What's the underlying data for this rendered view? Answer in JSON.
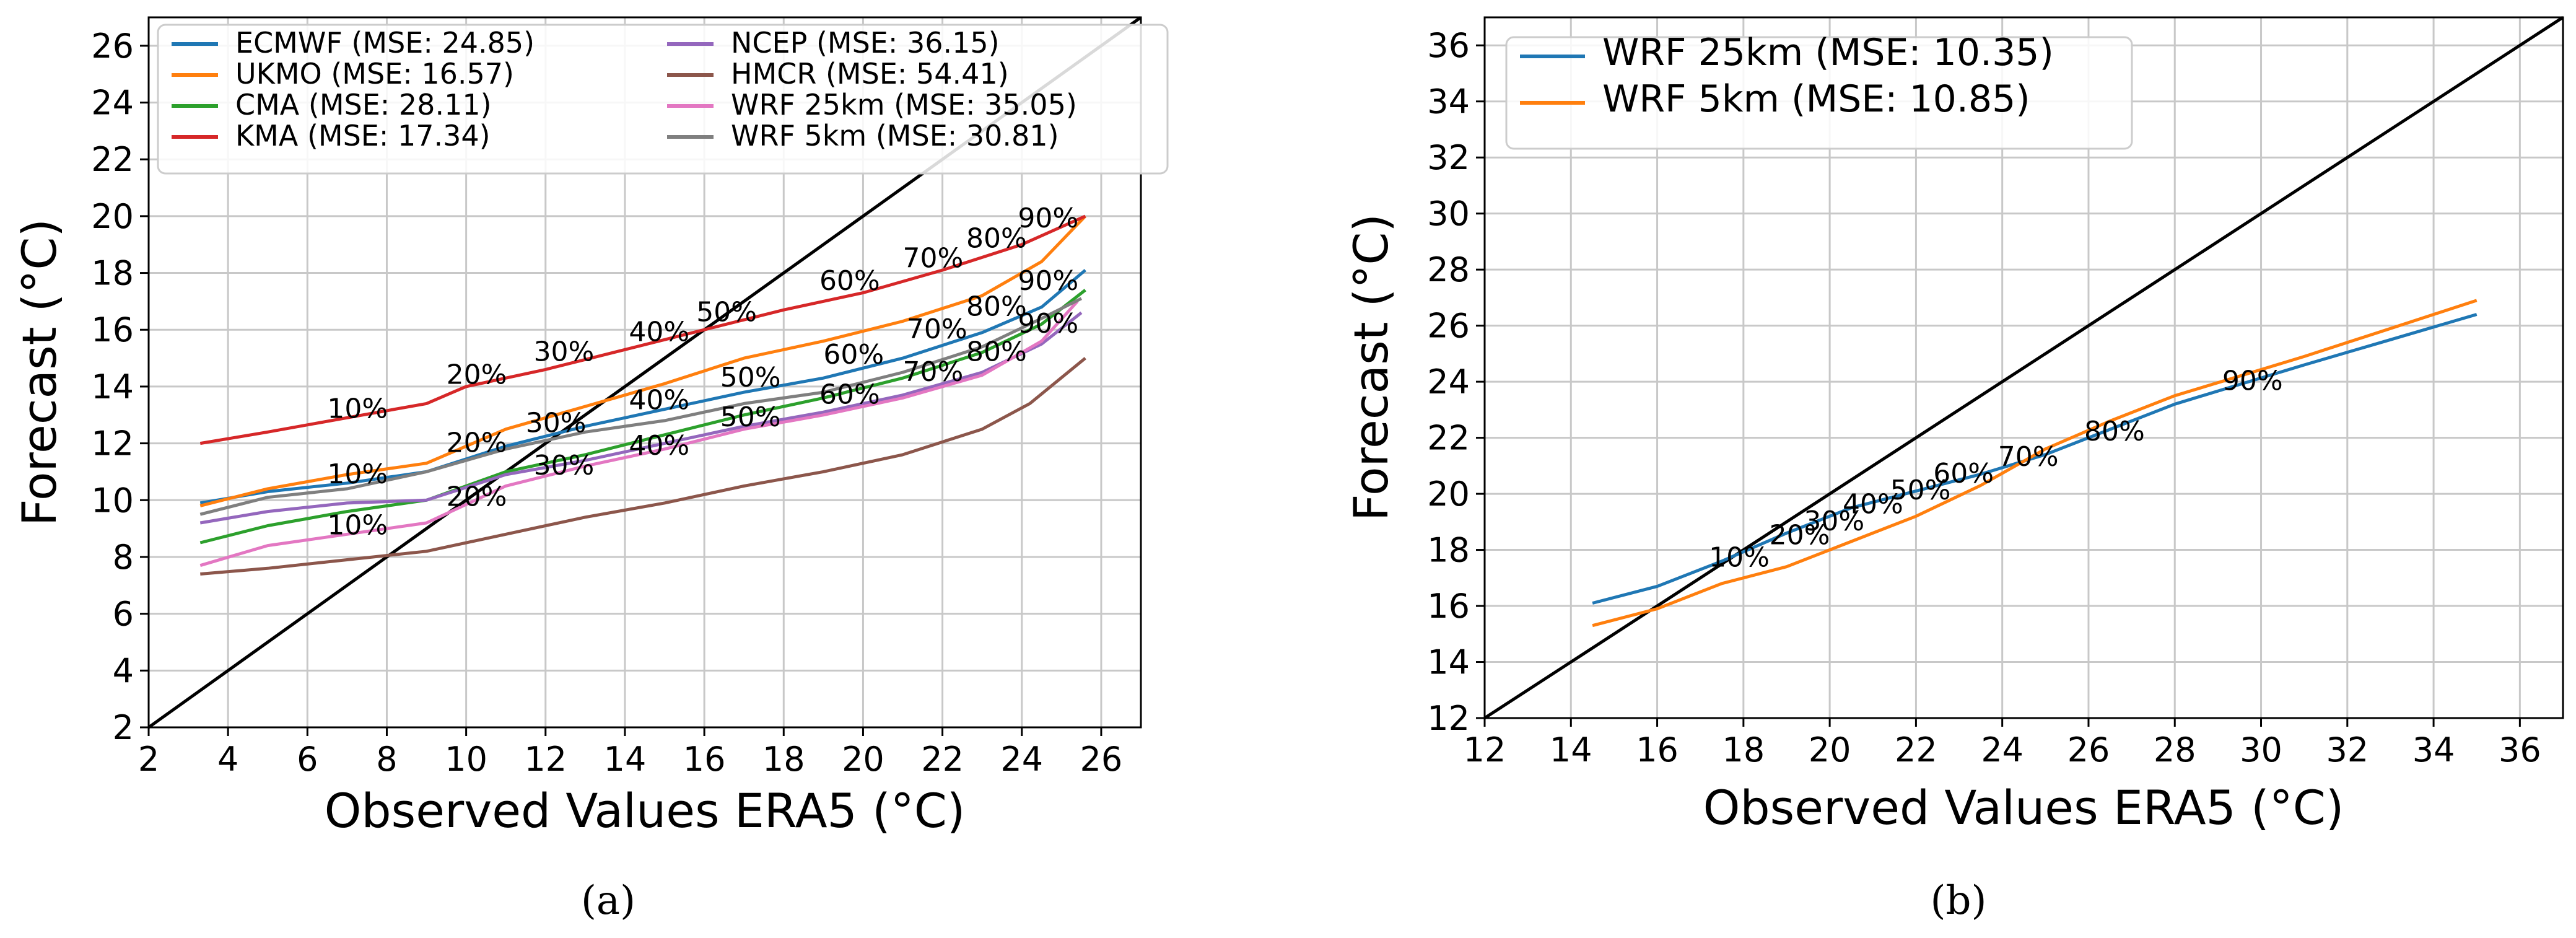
{
  "chart_data": [
    {
      "type": "line",
      "caption": "(a)",
      "xlabel": "Observed Values ERA5  (°C)",
      "ylabel": "Forecast  (°C)",
      "xlim": [
        2,
        27
      ],
      "ylim": [
        2,
        27
      ],
      "xticks": [
        2,
        4,
        6,
        8,
        10,
        12,
        14,
        16,
        18,
        20,
        22,
        24,
        26
      ],
      "yticks": [
        2,
        4,
        6,
        8,
        10,
        12,
        14,
        16,
        18,
        20,
        22,
        24,
        26
      ],
      "grid": true,
      "legend_position": "top-left",
      "legend_columns": 2,
      "reference_line": [
        [
          2,
          2
        ],
        [
          27,
          27
        ]
      ],
      "series": [
        {
          "name": "ECMWF (MSE: 24.85)",
          "color": "#1f77b4",
          "points": [
            [
              3.3,
              9.9
            ],
            [
              5.0,
              10.3
            ],
            [
              7.0,
              10.6
            ],
            [
              9.0,
              11.0
            ],
            [
              11.0,
              11.9
            ],
            [
              13.0,
              12.6
            ],
            [
              15.0,
              13.2
            ],
            [
              17.0,
              13.8
            ],
            [
              19.0,
              14.3
            ],
            [
              21.0,
              15.0
            ],
            [
              23.0,
              15.9
            ],
            [
              24.5,
              16.8
            ],
            [
              25.6,
              18.1
            ]
          ]
        },
        {
          "name": "UKMO (MSE: 16.57)",
          "color": "#ff7f0e",
          "points": [
            [
              3.3,
              9.8
            ],
            [
              5.0,
              10.4
            ],
            [
              7.0,
              10.9
            ],
            [
              9.0,
              11.3
            ],
            [
              11.0,
              12.5
            ],
            [
              13.0,
              13.3
            ],
            [
              15.0,
              14.1
            ],
            [
              17.0,
              15.0
            ],
            [
              19.0,
              15.6
            ],
            [
              21.0,
              16.3
            ],
            [
              23.0,
              17.2
            ],
            [
              24.5,
              18.4
            ],
            [
              25.6,
              20.0
            ]
          ]
        },
        {
          "name": "CMA (MSE: 28.11)",
          "color": "#2ca02c",
          "points": [
            [
              3.3,
              8.5
            ],
            [
              5.0,
              9.1
            ],
            [
              7.0,
              9.6
            ],
            [
              9.0,
              10.0
            ],
            [
              11.0,
              11.0
            ],
            [
              13.0,
              11.6
            ],
            [
              15.0,
              12.3
            ],
            [
              17.0,
              13.0
            ],
            [
              19.0,
              13.6
            ],
            [
              21.0,
              14.3
            ],
            [
              23.0,
              15.2
            ],
            [
              24.5,
              16.2
            ],
            [
              25.6,
              17.4
            ]
          ]
        },
        {
          "name": "KMA (MSE: 17.34)",
          "color": "#d62728",
          "points": [
            [
              3.3,
              12.0
            ],
            [
              5.0,
              12.4
            ],
            [
              7.0,
              12.9
            ],
            [
              9.0,
              13.4
            ],
            [
              10.0,
              14.0
            ],
            [
              12.0,
              14.6
            ],
            [
              14.0,
              15.3
            ],
            [
              16.0,
              16.0
            ],
            [
              18.0,
              16.7
            ],
            [
              20.0,
              17.3
            ],
            [
              22.0,
              18.1
            ],
            [
              24.0,
              19.0
            ],
            [
              25.6,
              20.0
            ]
          ]
        },
        {
          "name": "NCEP (MSE: 36.15)",
          "color": "#9467bd",
          "points": [
            [
              3.3,
              9.2
            ],
            [
              5.0,
              9.6
            ],
            [
              7.0,
              9.9
            ],
            [
              9.0,
              10.0
            ],
            [
              11.0,
              10.9
            ],
            [
              13.0,
              11.4
            ],
            [
              15.0,
              12.0
            ],
            [
              17.0,
              12.6
            ],
            [
              19.0,
              13.1
            ],
            [
              21.0,
              13.7
            ],
            [
              23.0,
              14.5
            ],
            [
              24.5,
              15.5
            ],
            [
              25.5,
              16.6
            ]
          ]
        },
        {
          "name": "HMCR (MSE: 54.41)",
          "color": "#8c564b",
          "points": [
            [
              3.3,
              7.4
            ],
            [
              5.0,
              7.6
            ],
            [
              7.0,
              7.9
            ],
            [
              9.0,
              8.2
            ],
            [
              11.0,
              8.8
            ],
            [
              13.0,
              9.4
            ],
            [
              15.0,
              9.9
            ],
            [
              17.0,
              10.5
            ],
            [
              19.0,
              11.0
            ],
            [
              21.0,
              11.6
            ],
            [
              23.0,
              12.5
            ],
            [
              24.2,
              13.4
            ],
            [
              25.6,
              15.0
            ]
          ]
        },
        {
          "name": "WRF 25km (MSE: 35.05)",
          "color": "#e377c2",
          "points": [
            [
              3.3,
              7.7
            ],
            [
              5.0,
              8.4
            ],
            [
              7.0,
              8.8
            ],
            [
              9.0,
              9.2
            ],
            [
              11.0,
              10.5
            ],
            [
              13.0,
              11.2
            ],
            [
              15.0,
              11.8
            ],
            [
              17.0,
              12.5
            ],
            [
              19.0,
              13.0
            ],
            [
              21.0,
              13.6
            ],
            [
              23.0,
              14.4
            ],
            [
              24.5,
              15.6
            ],
            [
              25.4,
              17.0
            ]
          ]
        },
        {
          "name": "WRF 5km (MSE: 30.81)",
          "color": "#7f7f7f",
          "points": [
            [
              3.3,
              9.5
            ],
            [
              5.0,
              10.1
            ],
            [
              7.0,
              10.4
            ],
            [
              9.0,
              11.0
            ],
            [
              11.0,
              11.8
            ],
            [
              13.0,
              12.4
            ],
            [
              15.0,
              12.8
            ],
            [
              17.0,
              13.4
            ],
            [
              19.0,
              13.8
            ],
            [
              21.0,
              14.5
            ],
            [
              23.0,
              15.4
            ],
            [
              24.5,
              16.4
            ],
            [
              25.5,
              17.1
            ]
          ]
        }
      ],
      "annotations": [
        {
          "text": "10%",
          "x": 6.5,
          "y": 12.9
        },
        {
          "text": "20%",
          "x": 9.5,
          "y": 14.1
        },
        {
          "text": "30%",
          "x": 11.7,
          "y": 14.9
        },
        {
          "text": "40%",
          "x": 14.1,
          "y": 15.6
        },
        {
          "text": "50%",
          "x": 15.8,
          "y": 16.3
        },
        {
          "text": "60%",
          "x": 18.9,
          "y": 17.4
        },
        {
          "text": "70%",
          "x": 21.0,
          "y": 18.2
        },
        {
          "text": "80%",
          "x": 22.6,
          "y": 18.9
        },
        {
          "text": "90%",
          "x": 23.9,
          "y": 19.6
        },
        {
          "text": "10%",
          "x": 6.5,
          "y": 10.6
        },
        {
          "text": "20%",
          "x": 9.5,
          "y": 11.7
        },
        {
          "text": "30%",
          "x": 11.5,
          "y": 12.4
        },
        {
          "text": "40%",
          "x": 14.1,
          "y": 13.2
        },
        {
          "text": "50%",
          "x": 16.4,
          "y": 14.0
        },
        {
          "text": "60%",
          "x": 19.0,
          "y": 14.8
        },
        {
          "text": "70%",
          "x": 21.1,
          "y": 15.7
        },
        {
          "text": "80%",
          "x": 22.6,
          "y": 16.5
        },
        {
          "text": "90%",
          "x": 23.9,
          "y": 17.4
        },
        {
          "text": "10%",
          "x": 6.5,
          "y": 8.8
        },
        {
          "text": "20%",
          "x": 9.5,
          "y": 9.8
        },
        {
          "text": "30%",
          "x": 11.7,
          "y": 10.9
        },
        {
          "text": "40%",
          "x": 14.1,
          "y": 11.6
        },
        {
          "text": "50%",
          "x": 16.4,
          "y": 12.6
        },
        {
          "text": "60%",
          "x": 18.9,
          "y": 13.4
        },
        {
          "text": "70%",
          "x": 21.0,
          "y": 14.2
        },
        {
          "text": "80%",
          "x": 22.6,
          "y": 14.9
        },
        {
          "text": "90%",
          "x": 23.9,
          "y": 15.9
        }
      ]
    },
    {
      "type": "line",
      "caption": "(b)",
      "xlabel": "Observed Values ERA5  (°C)",
      "ylabel": "Forecast  (°C)",
      "xlim": [
        12,
        37
      ],
      "ylim": [
        12,
        37
      ],
      "xticks": [
        12,
        14,
        16,
        18,
        20,
        22,
        24,
        26,
        28,
        30,
        32,
        34,
        36
      ],
      "yticks": [
        12,
        14,
        16,
        18,
        20,
        22,
        24,
        26,
        28,
        30,
        32,
        34,
        36
      ],
      "grid": true,
      "legend_position": "top-left",
      "legend_columns": 1,
      "reference_line": [
        [
          12,
          12
        ],
        [
          37,
          37
        ]
      ],
      "series": [
        {
          "name": "WRF 25km (MSE: 10.35)",
          "color": "#1f77b4",
          "points": [
            [
              14.5,
              16.1
            ],
            [
              16.0,
              16.7
            ],
            [
              17.5,
              17.6
            ],
            [
              19.0,
              18.6
            ],
            [
              20.5,
              19.5
            ],
            [
              22.0,
              20.1
            ],
            [
              23.5,
              20.7
            ],
            [
              25.0,
              21.4
            ],
            [
              26.5,
              22.3
            ],
            [
              28.0,
              23.2
            ],
            [
              29.5,
              23.9
            ],
            [
              31.0,
              24.6
            ],
            [
              33.0,
              25.5
            ],
            [
              35.0,
              26.4
            ]
          ]
        },
        {
          "name": "WRF 5km (MSE: 10.85)",
          "color": "#ff7f0e",
          "points": [
            [
              14.5,
              15.3
            ],
            [
              16.0,
              15.9
            ],
            [
              17.5,
              16.8
            ],
            [
              19.0,
              17.4
            ],
            [
              20.5,
              18.3
            ],
            [
              22.0,
              19.2
            ],
            [
              23.5,
              20.3
            ],
            [
              25.0,
              21.6
            ],
            [
              26.5,
              22.6
            ],
            [
              28.0,
              23.5
            ],
            [
              29.5,
              24.2
            ],
            [
              31.0,
              24.9
            ],
            [
              33.0,
              25.9
            ],
            [
              35.0,
              26.9
            ]
          ]
        }
      ],
      "annotations": [
        {
          "text": "10%",
          "x": 17.2,
          "y": 17.4
        },
        {
          "text": "20%",
          "x": 18.6,
          "y": 18.2
        },
        {
          "text": "30%",
          "x": 19.4,
          "y": 18.7
        },
        {
          "text": "40%",
          "x": 20.3,
          "y": 19.3
        },
        {
          "text": "50%",
          "x": 21.4,
          "y": 19.8
        },
        {
          "text": "60%",
          "x": 22.4,
          "y": 20.4
        },
        {
          "text": "70%",
          "x": 23.9,
          "y": 21.0
        },
        {
          "text": "80%",
          "x": 25.9,
          "y": 21.9
        },
        {
          "text": "90%",
          "x": 29.1,
          "y": 23.7
        }
      ]
    }
  ]
}
